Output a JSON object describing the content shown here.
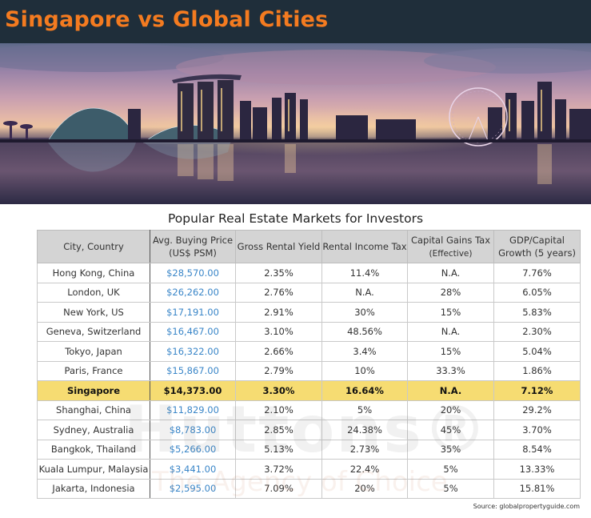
{
  "header": {
    "title": "Singapore vs Global Cities"
  },
  "table": {
    "title": "Popular Real Estate Markets for Investors",
    "columns": [
      {
        "line1": "City, Country",
        "line2": ""
      },
      {
        "line1": "Avg. Buying Price",
        "line2": "(US$ PSM)"
      },
      {
        "line1": "Gross Rental Yield",
        "line2": ""
      },
      {
        "line1": "Rental Income Tax",
        "line2": ""
      },
      {
        "line1": "Capital Gains Tax",
        "line2": "(Effective)"
      },
      {
        "line1": "GDP/Capital",
        "line2": "Growth (5 years)"
      }
    ],
    "rows": [
      [
        "Hong Kong, China",
        "$28,570.00",
        "2.35%",
        "11.4%",
        "N.A.",
        "7.76%"
      ],
      [
        "London, UK",
        "$26,262.00",
        "2.76%",
        "N.A.",
        "28%",
        "6.05%"
      ],
      [
        "New York, US",
        "$17,191.00",
        "2.91%",
        "30%",
        "15%",
        "5.83%"
      ],
      [
        "Geneva, Switzerland",
        "$16,467.00",
        "3.10%",
        "48.56%",
        "N.A.",
        "2.30%"
      ],
      [
        "Tokyo, Japan",
        "$16,322.00",
        "2.66%",
        "3.4%",
        "15%",
        "5.04%"
      ],
      [
        "Paris, France",
        "$15,867.00",
        "2.79%",
        "10%",
        "33.3%",
        "1.86%"
      ],
      [
        "Singapore",
        "$14,373.00",
        "3.30%",
        "16.64%",
        "N.A.",
        "7.12%"
      ],
      [
        "Shanghai, China",
        "$11,829.00",
        "2.10%",
        "5%",
        "20%",
        "29.2%"
      ],
      [
        "Sydney, Australia",
        "$8,783.00",
        "2.85%",
        "24.38%",
        "45%",
        "3.70%"
      ],
      [
        "Bangkok, Thailand",
        "$5,266.00",
        "5.13%",
        "2.73%",
        "35%",
        "8.54%"
      ],
      [
        "Kuala Lumpur, Malaysia",
        "$3,441.00",
        "3.72%",
        "22.4%",
        "5%",
        "13.33%"
      ],
      [
        "Jakarta, Indonesia",
        "$2,595.00",
        "7.09%",
        "20%",
        "5%",
        "15.81%"
      ]
    ],
    "highlight_row": "Singapore"
  },
  "watermark": {
    "brand": "Huttons®",
    "tagline": "The Agency of Choice"
  },
  "source": "Source: globalpropertyguide.com",
  "colors": {
    "title_bar": "#1f2e3a",
    "title_text": "#f47b20",
    "price_text": "#3a86c8",
    "highlight": "#f6dc72",
    "header_bg": "#d4d4d4"
  }
}
